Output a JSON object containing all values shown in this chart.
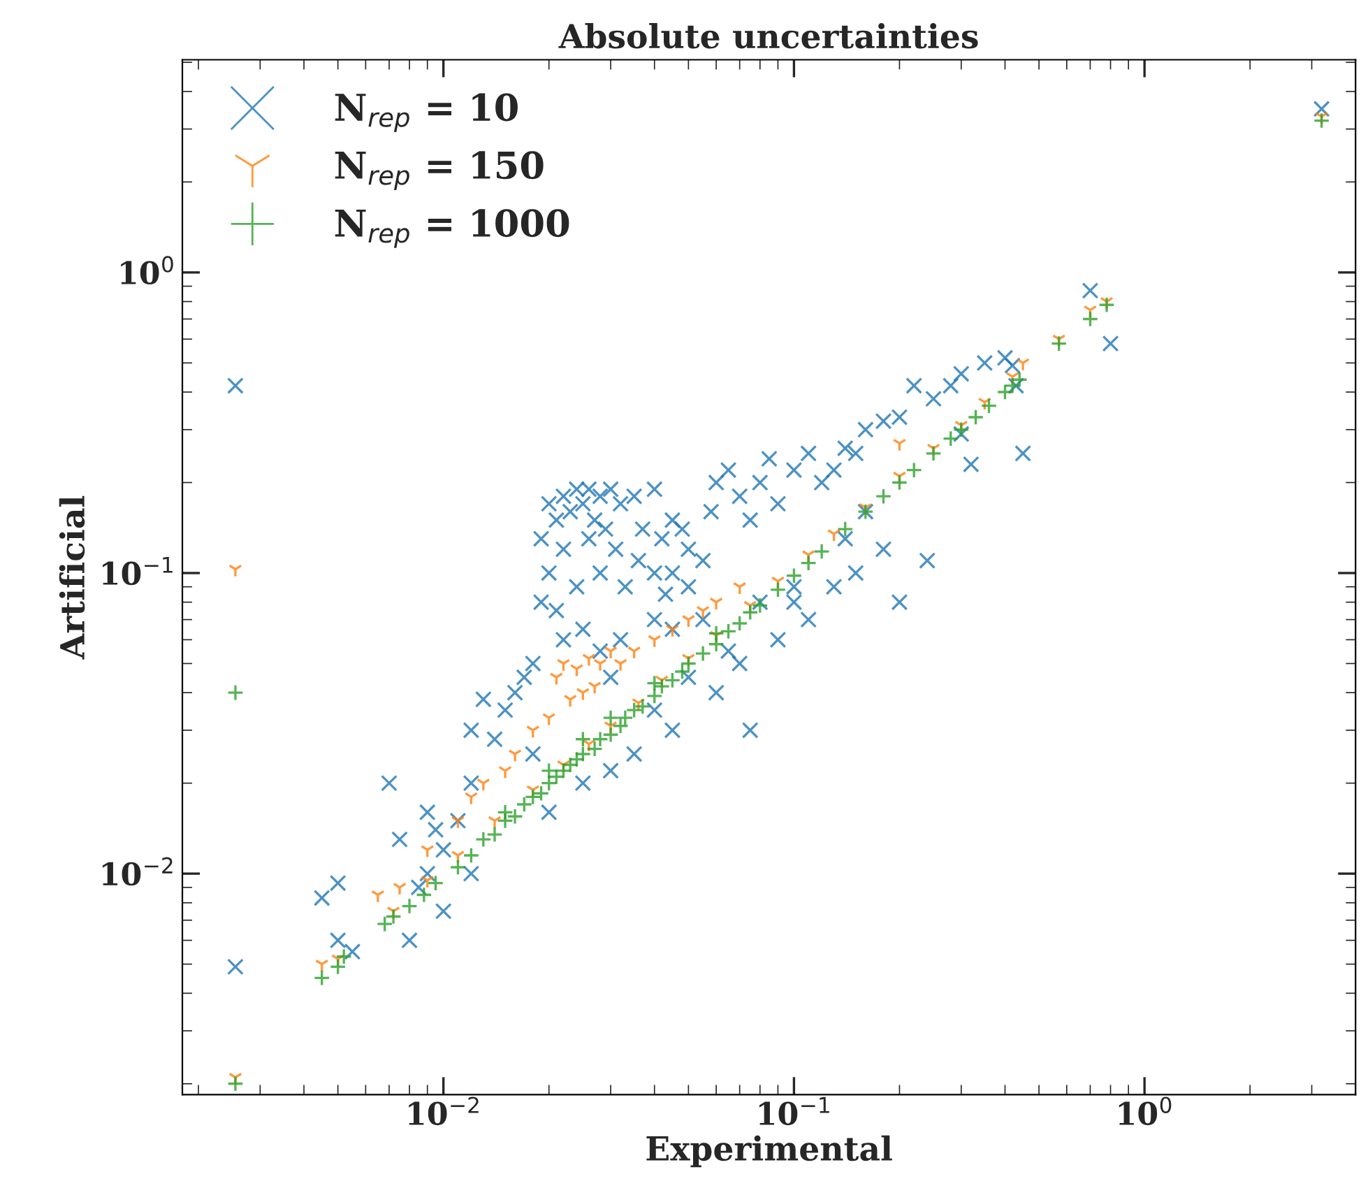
{
  "chart_data": {
    "type": "scatter",
    "title": "Absolute uncertainties",
    "xlabel": "Experimental",
    "ylabel": "Artificial",
    "log": "xy",
    "xlim": [
      0.0018,
      4.0
    ],
    "ylim": [
      0.00184,
      5.1
    ],
    "xticks": [
      {
        "value": 0.01,
        "label": "10$^{−2}$"
      },
      {
        "value": 0.1,
        "label": "10$^{−1}$"
      },
      {
        "value": 1,
        "label": "10$^{0}$"
      }
    ],
    "yticks": [
      {
        "value": 0.01,
        "label": "10$^{−2}$"
      },
      {
        "value": 0.1,
        "label": "10$^{−1}$"
      },
      {
        "value": 1,
        "label": "10$^{0}$"
      }
    ],
    "legend": "top left",
    "series": [
      {
        "name": "N$_{rep}$ = 10",
        "color": "#1f77b4",
        "marker": "cross",
        "x": [
          0.02,
          0.021,
          0.022,
          0.023,
          0.024,
          0.025,
          0.026,
          0.027,
          0.028,
          0.03,
          0.032,
          0.029,
          0.026,
          0.022,
          0.02,
          0.019,
          0.019,
          0.021,
          0.024,
          0.028,
          0.031,
          0.035,
          0.04,
          0.037,
          0.033,
          0.036,
          0.04,
          0.042,
          0.045,
          0.048,
          0.05,
          0.045,
          0.043,
          0.05,
          0.055,
          0.058,
          0.06,
          0.065,
          0.07,
          0.075,
          0.08,
          0.085,
          0.09,
          0.1,
          0.11,
          0.12,
          0.13,
          0.14,
          0.15,
          0.16,
          0.18,
          0.2,
          0.22,
          0.25,
          0.28,
          0.3,
          0.35,
          0.4,
          0.42,
          0.43,
          0.7,
          0.8,
          0.45,
          0.32,
          0.3,
          0.24,
          0.2,
          0.15,
          0.13,
          0.1,
          0.09,
          0.075,
          0.07,
          0.06,
          0.05,
          0.045,
          0.04,
          0.035,
          0.03,
          0.025,
          0.02,
          0.018,
          0.015,
          0.013,
          0.012,
          0.011,
          0.01,
          0.009,
          0.008,
          0.0075,
          0.007,
          0.009,
          0.0095,
          0.012,
          0.014,
          0.016,
          0.018,
          0.017,
          0.022,
          0.025,
          0.028,
          0.032,
          0.03,
          0.04,
          0.045,
          0.055,
          0.065,
          0.08,
          0.1,
          0.11,
          0.14,
          0.16,
          0.18,
          0.005,
          0.0045,
          0.005,
          0.0055,
          0.00255,
          0.00255,
          3.2,
          0.012,
          0.01,
          0.0085
        ],
        "values": [
          0.17,
          0.15,
          0.18,
          0.16,
          0.19,
          0.17,
          0.19,
          0.15,
          0.18,
          0.19,
          0.17,
          0.14,
          0.13,
          0.12,
          0.1,
          0.13,
          0.08,
          0.075,
          0.09,
          0.1,
          0.12,
          0.18,
          0.19,
          0.14,
          0.09,
          0.11,
          0.1,
          0.13,
          0.15,
          0.14,
          0.12,
          0.1,
          0.085,
          0.09,
          0.11,
          0.16,
          0.2,
          0.22,
          0.18,
          0.15,
          0.2,
          0.24,
          0.17,
          0.22,
          0.25,
          0.2,
          0.22,
          0.26,
          0.25,
          0.3,
          0.32,
          0.33,
          0.42,
          0.38,
          0.42,
          0.46,
          0.5,
          0.52,
          0.49,
          0.42,
          0.87,
          0.58,
          0.25,
          0.23,
          0.29,
          0.11,
          0.08,
          0.1,
          0.09,
          0.08,
          0.06,
          0.03,
          0.05,
          0.04,
          0.045,
          0.03,
          0.035,
          0.025,
          0.022,
          0.02,
          0.016,
          0.025,
          0.035,
          0.038,
          0.02,
          0.015,
          0.012,
          0.01,
          0.006,
          0.013,
          0.02,
          0.016,
          0.014,
          0.03,
          0.028,
          0.04,
          0.05,
          0.045,
          0.06,
          0.065,
          0.055,
          0.06,
          0.045,
          0.07,
          0.065,
          0.07,
          0.055,
          0.08,
          0.09,
          0.07,
          0.13,
          0.16,
          0.12,
          0.0093,
          0.0083,
          0.006,
          0.0055,
          0.42,
          0.0049,
          3.5,
          0.01,
          0.0075,
          0.009
        ]
      },
      {
        "name": "N$_{rep}$ = 150",
        "color": "#ff7f0e",
        "marker": "cross",
        "x": [
          0.021,
          0.022,
          0.024,
          0.026,
          0.028,
          0.03,
          0.032,
          0.025,
          0.023,
          0.027,
          0.035,
          0.04,
          0.045,
          0.05,
          0.055,
          0.06,
          0.07,
          0.02,
          0.018,
          0.016,
          0.015,
          0.013,
          0.012,
          0.011,
          0.009,
          0.0075,
          0.0065,
          0.0045,
          0.005,
          0.0072,
          0.009,
          0.011,
          0.014,
          0.018,
          0.022,
          0.026,
          0.03,
          0.036,
          0.042,
          0.05,
          0.06,
          0.075,
          0.09,
          0.11,
          0.13,
          0.16,
          0.2,
          0.25,
          0.3,
          0.35,
          0.42,
          0.45,
          0.57,
          0.78,
          0.7,
          3.2,
          0.00255,
          0.00255,
          0.2
        ],
        "values": [
          0.045,
          0.05,
          0.048,
          0.052,
          0.05,
          0.055,
          0.05,
          0.04,
          0.038,
          0.042,
          0.055,
          0.06,
          0.065,
          0.07,
          0.075,
          0.08,
          0.09,
          0.033,
          0.03,
          0.025,
          0.022,
          0.02,
          0.018,
          0.015,
          0.012,
          0.009,
          0.0085,
          0.005,
          0.0052,
          0.0075,
          0.0095,
          0.0115,
          0.015,
          0.019,
          0.023,
          0.027,
          0.031,
          0.037,
          0.044,
          0.052,
          0.062,
          0.078,
          0.094,
          0.115,
          0.135,
          0.165,
          0.21,
          0.26,
          0.31,
          0.37,
          0.45,
          0.5,
          0.6,
          0.8,
          0.75,
          3.3,
          0.103,
          0.0021,
          0.27
        ]
      },
      {
        "name": "N$_{rep}$ = 1000",
        "color": "#2ca02c",
        "marker": "cross",
        "x": [
          0.0045,
          0.005,
          0.0052,
          0.0068,
          0.0072,
          0.008,
          0.0088,
          0.0095,
          0.011,
          0.012,
          0.013,
          0.014,
          0.015,
          0.016,
          0.017,
          0.018,
          0.019,
          0.02,
          0.021,
          0.022,
          0.023,
          0.024,
          0.025,
          0.027,
          0.028,
          0.03,
          0.032,
          0.033,
          0.035,
          0.037,
          0.04,
          0.042,
          0.045,
          0.048,
          0.05,
          0.055,
          0.06,
          0.065,
          0.07,
          0.075,
          0.08,
          0.09,
          0.1,
          0.11,
          0.12,
          0.14,
          0.16,
          0.18,
          0.2,
          0.22,
          0.25,
          0.28,
          0.3,
          0.33,
          0.36,
          0.4,
          0.42,
          0.44,
          0.57,
          0.7,
          0.78,
          3.2,
          0.00255,
          0.00255,
          0.02,
          0.03,
          0.025,
          0.04,
          0.015,
          0.06
        ],
        "values": [
          0.0045,
          0.0049,
          0.0053,
          0.0068,
          0.0072,
          0.0078,
          0.0085,
          0.0093,
          0.0105,
          0.0115,
          0.013,
          0.0135,
          0.015,
          0.0155,
          0.017,
          0.018,
          0.0185,
          0.02,
          0.021,
          0.022,
          0.023,
          0.024,
          0.025,
          0.026,
          0.028,
          0.029,
          0.031,
          0.033,
          0.035,
          0.036,
          0.039,
          0.042,
          0.044,
          0.047,
          0.05,
          0.054,
          0.058,
          0.064,
          0.068,
          0.074,
          0.078,
          0.088,
          0.098,
          0.108,
          0.118,
          0.14,
          0.16,
          0.18,
          0.2,
          0.22,
          0.25,
          0.28,
          0.3,
          0.33,
          0.36,
          0.4,
          0.42,
          0.44,
          0.58,
          0.7,
          0.78,
          3.2,
          0.04,
          0.002,
          0.022,
          0.033,
          0.028,
          0.043,
          0.016,
          0.063
        ]
      }
    ]
  }
}
